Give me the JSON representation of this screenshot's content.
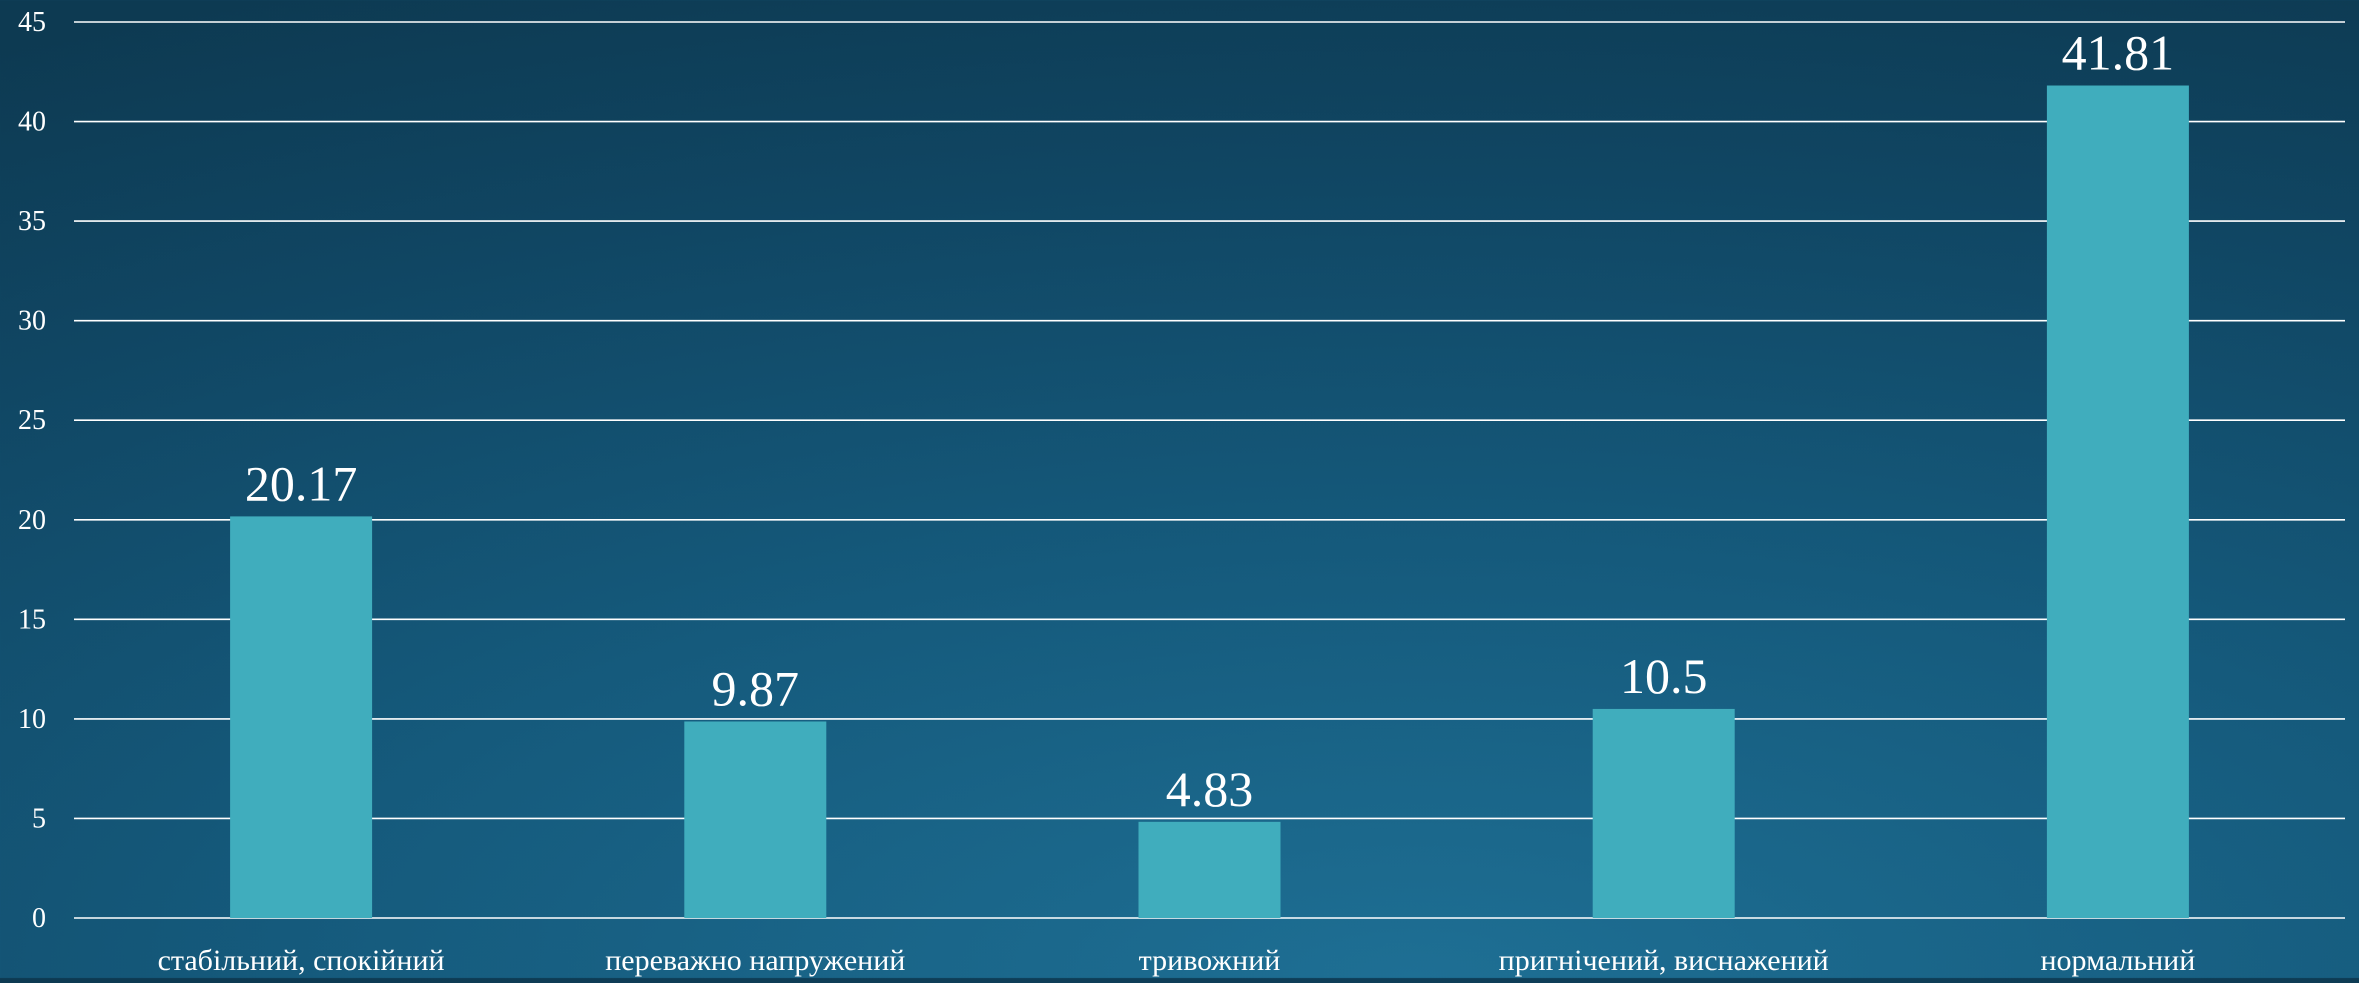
{
  "chart_data": {
    "type": "bar",
    "categories": [
      "стабільний, спокійний",
      "переважно напружений",
      "тривожний",
      "пригнічений, виснажений",
      "нормальний"
    ],
    "values": [
      20.17,
      9.87,
      4.83,
      10.5,
      41.81
    ],
    "value_labels": [
      "20.17",
      "9.87",
      "4.83",
      "10.5",
      "41.81"
    ],
    "y_ticks": [
      "0",
      "5",
      "10",
      "15",
      "20",
      "25",
      "30",
      "35",
      "40",
      "45"
    ],
    "ylim": [
      0,
      45
    ],
    "title": "",
    "xlabel": "",
    "ylabel": "",
    "grid": true,
    "legend": "none",
    "colors": {
      "bar": "#40adbd",
      "grid": "#ffffff",
      "text": "#ffffff"
    }
  }
}
